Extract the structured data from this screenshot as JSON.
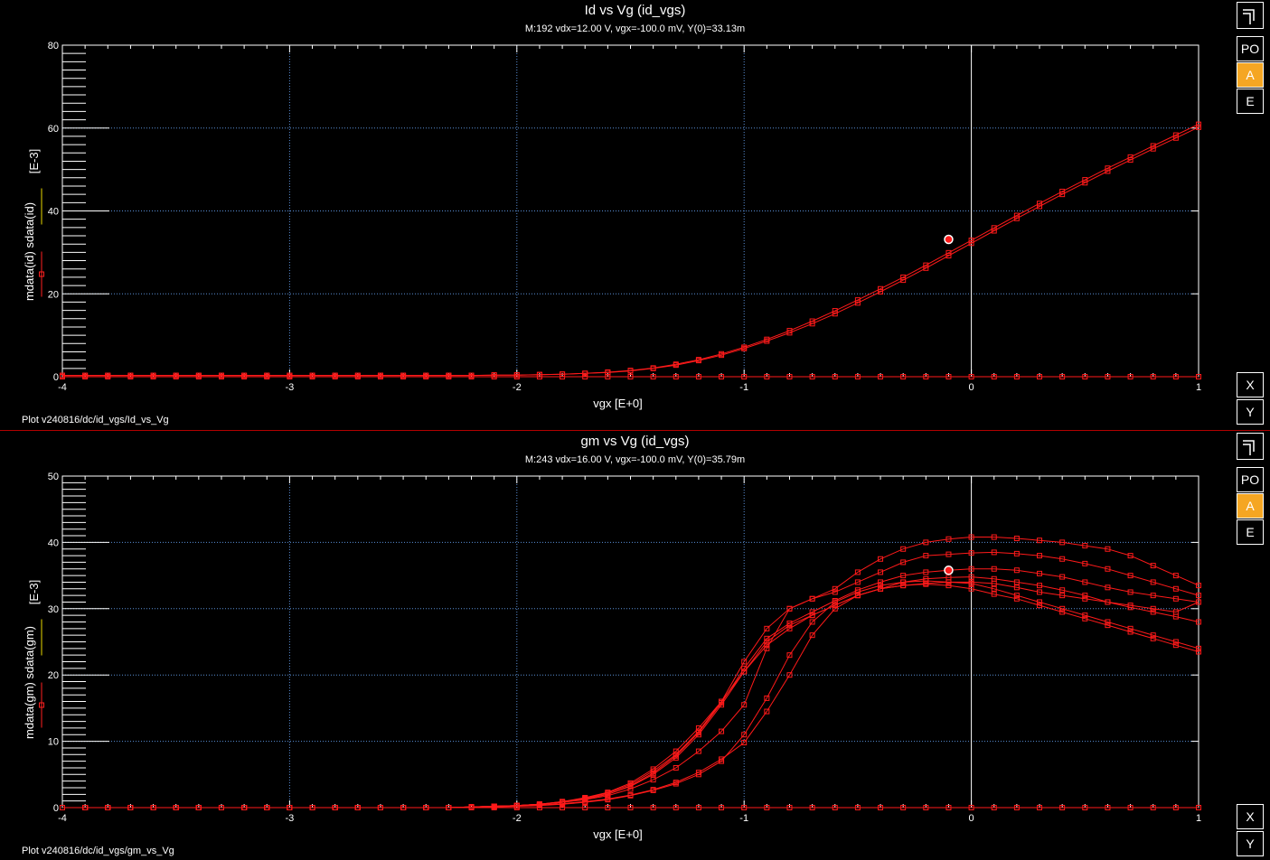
{
  "panels": [
    {
      "title": "Id vs Vg (id_vgs)",
      "subtitle": "M:192 vdx=12.00  V, vgx=-100.0  mV, Y(0)=33.13m",
      "footer": "Plot v240816/dc/id_vgs/Id_vs_Vg",
      "buttons": {
        "po": "PO",
        "a": "A",
        "e": "E",
        "x": "X",
        "y": "Y"
      },
      "y_label_main": "mdata(id)  sdata(id)",
      "y_label_unit": "[E-3]",
      "x_label": "vgx  [E+0]",
      "colors": {
        "curve": "#ff1a1a",
        "grid": "#5a8fd6",
        "legend_m": "#ff2020",
        "legend_s": "#e8d800"
      },
      "chart_data": {
        "type": "line",
        "xlim": [
          -4,
          1
        ],
        "ylim": [
          0,
          80
        ],
        "xticks": [
          -4,
          -3,
          -2,
          -1,
          0,
          1
        ],
        "yticks": [
          0,
          20,
          40,
          60,
          80
        ],
        "grid": true,
        "marker": {
          "x": -0.1,
          "y": 33.13
        },
        "x": [
          -4.0,
          -3.9,
          -3.8,
          -3.7,
          -3.6,
          -3.5,
          -3.4,
          -3.3,
          -3.2,
          -3.1,
          -3.0,
          -2.9,
          -2.8,
          -2.7,
          -2.6,
          -2.5,
          -2.4,
          -2.3,
          -2.2,
          -2.1,
          -2.0,
          -1.9,
          -1.8,
          -1.7,
          -1.6,
          -1.5,
          -1.4,
          -1.3,
          -1.2,
          -1.1,
          -1.0,
          -0.9,
          -0.8,
          -0.7,
          -0.6,
          -0.5,
          -0.4,
          -0.3,
          -0.2,
          -0.1,
          0.0,
          0.1,
          0.2,
          0.3,
          0.4,
          0.5,
          0.6,
          0.7,
          0.8,
          0.9,
          1.0
        ],
        "series": [
          {
            "values": [
              0,
              0,
              0,
              0,
              0,
              0,
              0,
              0,
              0,
              0,
              0,
              0,
              0,
              0,
              0,
              0,
              0,
              0,
              0,
              0,
              0,
              0,
              0,
              0,
              0,
              0,
              0,
              0,
              0,
              0,
              0,
              0,
              0,
              0,
              0,
              0,
              0,
              0,
              0,
              0,
              0,
              0,
              0,
              0,
              0,
              0,
              0,
              0,
              0,
              0,
              0
            ]
          },
          {
            "values": [
              0.3,
              0.3,
              0.3,
              0.3,
              0.3,
              0.3,
              0.3,
              0.3,
              0.3,
              0.3,
              0.3,
              0.3,
              0.3,
              0.3,
              0.3,
              0.3,
              0.3,
              0.3,
              0.3,
              0.4,
              0.4,
              0.5,
              0.6,
              0.8,
              1.0,
              1.4,
              2.0,
              2.8,
              3.9,
              5.2,
              6.8,
              8.6,
              10.6,
              12.8,
              15.2,
              17.8,
              20.5,
              23.3,
              26.2,
              29.2,
              32.2,
              35.2,
              38.2,
              41.1,
              44.0,
              46.8,
              49.6,
              52.3,
              55.0,
              57.6,
              60.2
            ]
          },
          {
            "values": [
              0.3,
              0.3,
              0.3,
              0.3,
              0.3,
              0.3,
              0.3,
              0.3,
              0.3,
              0.3,
              0.3,
              0.3,
              0.3,
              0.3,
              0.3,
              0.3,
              0.3,
              0.3,
              0.3,
              0.4,
              0.4,
              0.5,
              0.6,
              0.8,
              1.1,
              1.5,
              2.1,
              3.0,
              4.1,
              5.5,
              7.1,
              9.0,
              11.1,
              13.4,
              15.9,
              18.5,
              21.2,
              24.0,
              26.9,
              29.9,
              32.9,
              35.9,
              38.9,
              41.8,
              44.7,
              47.5,
              50.3,
              53.0,
              55.7,
              58.3,
              60.9
            ]
          }
        ]
      }
    },
    {
      "title": "gm vs Vg (id_vgs)",
      "subtitle": "M:243 vdx=16.00  V, vgx=-100.0  mV, Y(0)=35.79m",
      "footer": "Plot v240816/dc/id_vgs/gm_vs_Vg",
      "buttons": {
        "po": "PO",
        "a": "A",
        "e": "E",
        "x": "X",
        "y": "Y"
      },
      "y_label_main": "mdata(gm)  sdata(gm)",
      "y_label_unit": "[E-3]",
      "x_label": "vgx  [E+0]",
      "colors": {
        "curve": "#ff1a1a",
        "grid": "#5a8fd6",
        "legend_m": "#ff2020",
        "legend_s": "#e8d800"
      },
      "chart_data": {
        "type": "line",
        "xlim": [
          -4,
          1
        ],
        "ylim": [
          0,
          50
        ],
        "xticks": [
          -4,
          -3,
          -2,
          -1,
          0,
          1
        ],
        "yticks": [
          0,
          10,
          20,
          30,
          40,
          50
        ],
        "grid": true,
        "marker": {
          "x": -0.1,
          "y": 35.79
        },
        "x": [
          -4.0,
          -3.9,
          -3.8,
          -3.7,
          -3.6,
          -3.5,
          -3.4,
          -3.3,
          -3.2,
          -3.1,
          -3.0,
          -2.9,
          -2.8,
          -2.7,
          -2.6,
          -2.5,
          -2.4,
          -2.3,
          -2.2,
          -2.1,
          -2.0,
          -1.9,
          -1.8,
          -1.7,
          -1.6,
          -1.5,
          -1.4,
          -1.3,
          -1.2,
          -1.1,
          -1.0,
          -0.9,
          -0.8,
          -0.7,
          -0.6,
          -0.5,
          -0.4,
          -0.3,
          -0.2,
          -0.1,
          0.0,
          0.1,
          0.2,
          0.3,
          0.4,
          0.5,
          0.6,
          0.7,
          0.8,
          0.9,
          1.0
        ],
        "series": [
          {
            "values": [
              0,
              0,
              0,
              0,
              0,
              0,
              0,
              0,
              0,
              0,
              0,
              0,
              0,
              0,
              0,
              0,
              0,
              0,
              0,
              0,
              0,
              0,
              0,
              0,
              0,
              0,
              0,
              0,
              0,
              0,
              0,
              0,
              0,
              0,
              0,
              0,
              0,
              0,
              0,
              0,
              0,
              0,
              0,
              0,
              0,
              0,
              0,
              0,
              0,
              0,
              0
            ]
          },
          {
            "values": [
              0,
              0,
              0,
              0,
              0,
              0,
              0,
              0,
              0,
              0,
              0,
              0,
              0,
              0,
              0,
              0,
              0,
              0,
              0.1,
              0.1,
              0.2,
              0.3,
              0.5,
              0.8,
              1.2,
              1.8,
              2.6,
              3.6,
              5.0,
              7.0,
              11.0,
              16.5,
              23.0,
              28.0,
              31.0,
              32.5,
              33.5,
              34.0,
              34.2,
              34.0,
              33.8,
              33.0,
              32.0,
              31.0,
              30.0,
              29.0,
              28.0,
              27.0,
              26.0,
              25.0,
              24.0
            ]
          },
          {
            "values": [
              0,
              0,
              0,
              0,
              0,
              0,
              0,
              0,
              0,
              0,
              0,
              0,
              0,
              0,
              0,
              0,
              0,
              0,
              0.1,
              0.2,
              0.3,
              0.5,
              0.8,
              1.3,
              2.0,
              3.2,
              5.0,
              7.5,
              11.0,
              15.5,
              20.5,
              25.0,
              27.5,
              29.0,
              30.5,
              32.0,
              33.0,
              34.0,
              34.5,
              34.7,
              34.8,
              34.5,
              34.0,
              33.5,
              32.8,
              32.0,
              31.0,
              30.2,
              29.5,
              28.8,
              28.0
            ]
          },
          {
            "values": [
              0,
              0,
              0,
              0,
              0,
              0,
              0,
              0,
              0,
              0,
              0,
              0,
              0,
              0,
              0,
              0,
              0,
              0,
              0.1,
              0.2,
              0.3,
              0.5,
              0.8,
              1.3,
              2.0,
              3.3,
              5.2,
              7.8,
              11.3,
              15.8,
              21.0,
              25.5,
              27.8,
              29.5,
              31.2,
              32.8,
              34.0,
              35.0,
              35.5,
              35.79,
              36.0,
              36.0,
              35.8,
              35.3,
              34.8,
              34.0,
              33.2,
              32.5,
              32.0,
              31.5,
              31.0
            ]
          },
          {
            "values": [
              0,
              0,
              0,
              0,
              0,
              0,
              0,
              0,
              0,
              0,
              0,
              0,
              0,
              0,
              0,
              0,
              0,
              0,
              0.1,
              0.2,
              0.3,
              0.5,
              0.9,
              1.4,
              2.2,
              3.5,
              5.5,
              8.0,
              11.5,
              16.0,
              22.0,
              27.0,
              30.0,
              31.5,
              32.5,
              34.0,
              35.5,
              37.0,
              38.0,
              38.2,
              38.4,
              38.5,
              38.3,
              38.0,
              37.5,
              36.8,
              36.0,
              35.0,
              34.0,
              33.0,
              32.0
            ]
          },
          {
            "values": [
              0,
              0,
              0,
              0,
              0,
              0,
              0,
              0,
              0,
              0,
              0,
              0,
              0,
              0,
              0,
              0,
              0,
              0,
              0.1,
              0.2,
              0.3,
              0.5,
              0.9,
              1.5,
              2.3,
              3.7,
              5.8,
              8.5,
              12.0,
              16.0,
              20.5,
              24.5,
              27.0,
              29.0,
              30.5,
              32.0,
              33.0,
              33.5,
              33.8,
              34.0,
              34.0,
              33.8,
              33.2,
              32.5,
              32.0,
              31.5,
              31.0,
              30.5,
              30.0,
              29.5,
              31.0
            ]
          },
          {
            "values": [
              0,
              0,
              0,
              0,
              0,
              0,
              0,
              0,
              0,
              0,
              0,
              0,
              0,
              0,
              0,
              0,
              0,
              0,
              0.1,
              0.2,
              0.3,
              0.5,
              0.8,
              1.2,
              1.8,
              2.8,
              4.2,
              6.0,
              8.5,
              11.5,
              15.5,
              24.0,
              30.0,
              31.5,
              33.0,
              35.5,
              37.5,
              39.0,
              40.0,
              40.5,
              40.8,
              40.8,
              40.6,
              40.3,
              40.0,
              39.5,
              39.0,
              38.0,
              36.5,
              35.0,
              33.5
            ]
          },
          {
            "values": [
              0,
              0,
              0,
              0,
              0,
              0,
              0,
              0,
              0,
              0,
              0,
              0,
              0,
              0,
              0,
              0,
              0,
              0,
              0.1,
              0.2,
              0.3,
              0.4,
              0.6,
              0.9,
              1.3,
              1.9,
              2.7,
              3.8,
              5.3,
              7.3,
              9.8,
              14.5,
              20.0,
              26.0,
              30.0,
              32.0,
              33.0,
              33.5,
              33.7,
              33.5,
              33.0,
              32.2,
              31.5,
              30.5,
              29.5,
              28.5,
              27.5,
              26.5,
              25.5,
              24.5,
              23.5
            ]
          }
        ]
      }
    }
  ]
}
